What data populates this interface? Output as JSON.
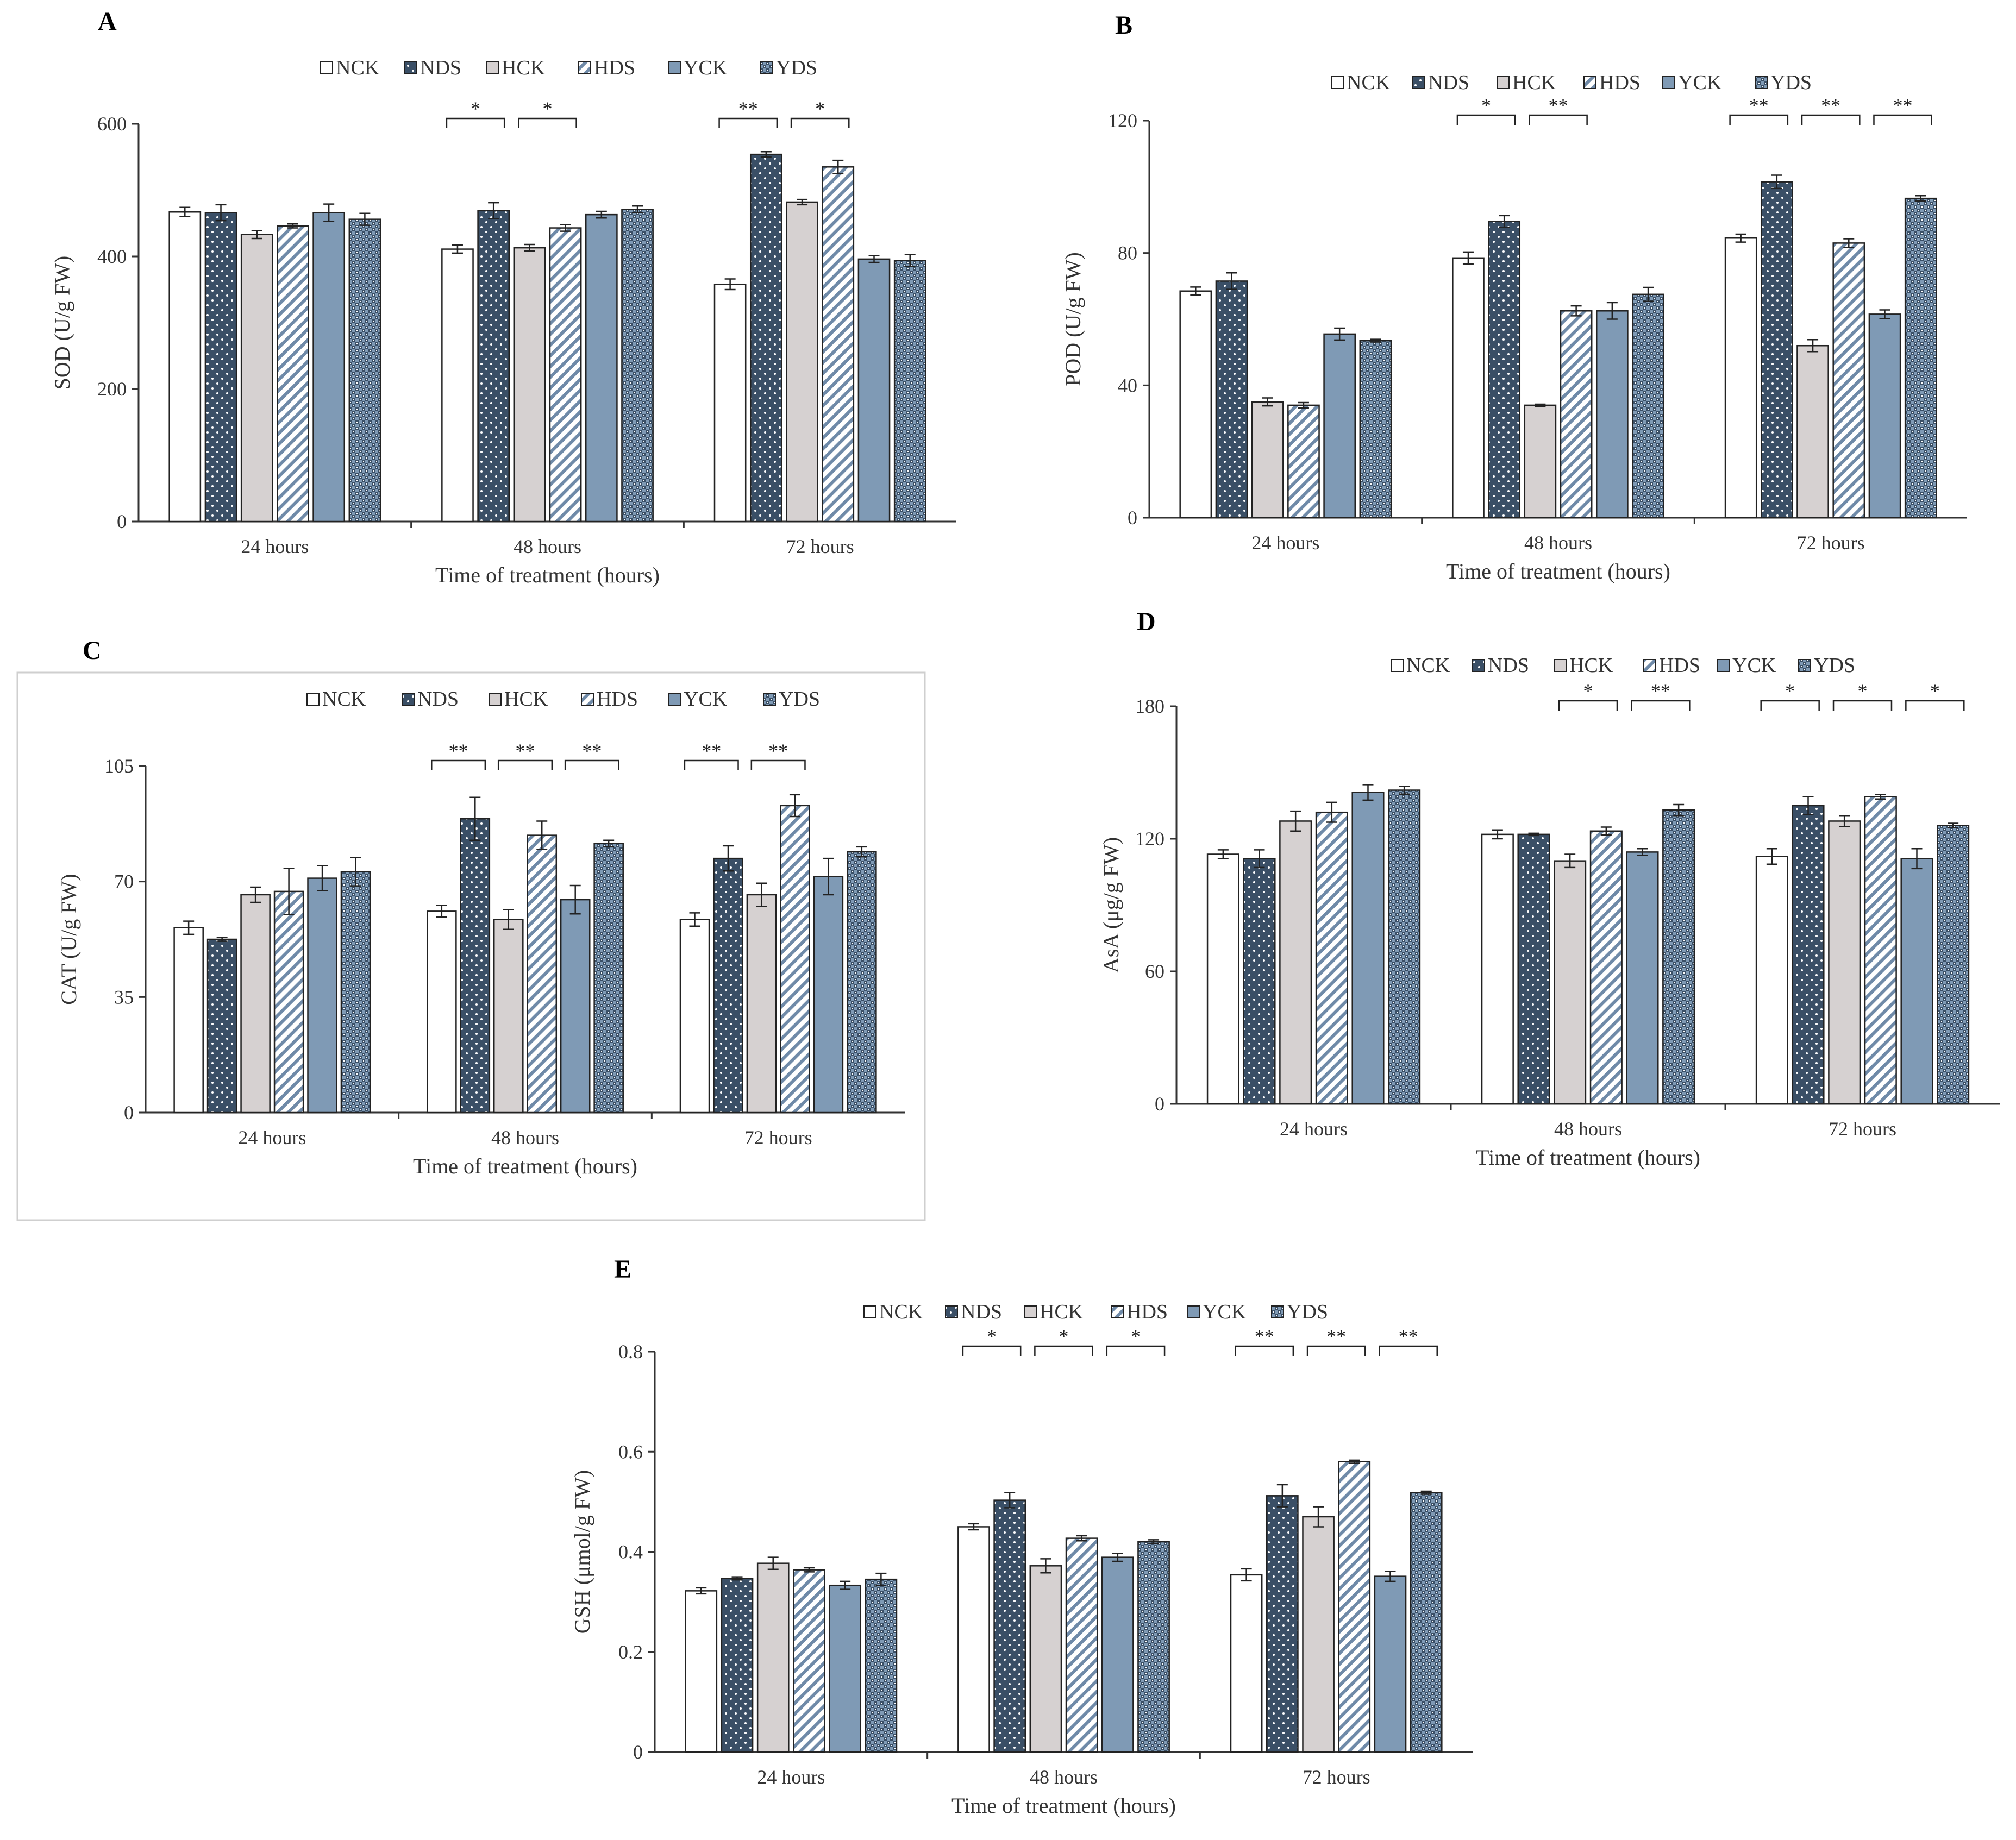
{
  "figure": {
    "series_names": [
      "NCK",
      "NDS",
      "HCK",
      "HDS",
      "YCK",
      "YDS"
    ],
    "series_colors": [
      "#ffffff",
      "#3a4f66",
      "#d6d1d1",
      "#ffffff",
      "#7f9ab5",
      "#ffffff"
    ],
    "series_patterns": [
      "solid",
      "dots",
      "solid",
      "diag",
      "solid",
      "check"
    ]
  },
  "chart_data": [
    {
      "panel": "A",
      "type": "bar",
      "categories": [
        "24 hours",
        "48 hours",
        "72 hours"
      ],
      "xlabel": "Time of treatment (hours)",
      "ylabel": "SOD (U/g FW)",
      "ylim": [
        0,
        600
      ],
      "yticks": [
        "0",
        "200",
        "400",
        "600"
      ],
      "series": [
        {
          "name": "NCK",
          "values": [
            467,
            411,
            358
          ],
          "errors": [
            7,
            6,
            8
          ]
        },
        {
          "name": "NDS",
          "values": [
            466,
            469,
            554
          ],
          "errors": [
            12,
            12,
            4
          ]
        },
        {
          "name": "HCK",
          "values": [
            433,
            413,
            482
          ],
          "errors": [
            6,
            5,
            4
          ]
        },
        {
          "name": "HDS",
          "values": [
            446,
            443,
            535
          ],
          "errors": [
            3,
            5,
            10
          ]
        },
        {
          "name": "YCK",
          "values": [
            466,
            463,
            396
          ],
          "errors": [
            13,
            5,
            5
          ]
        },
        {
          "name": "YDS",
          "values": [
            456,
            471,
            394
          ],
          "errors": [
            9,
            5,
            9
          ]
        }
      ],
      "sig": [
        {
          "group": 1,
          "from": 0,
          "to": 1,
          "label": "*"
        },
        {
          "group": 1,
          "from": 2,
          "to": 3,
          "label": "*"
        },
        {
          "group": 2,
          "from": 0,
          "to": 1,
          "label": "**"
        },
        {
          "group": 2,
          "from": 2,
          "to": 3,
          "label": "*"
        }
      ]
    },
    {
      "panel": "B",
      "type": "bar",
      "categories": [
        "24 hours",
        "48 hours",
        "72 hours"
      ],
      "xlabel": "Time of treatment (hours)",
      "ylabel": "POD (U/g FW)",
      "ylim": [
        0,
        120
      ],
      "yticks": [
        "0",
        "40",
        "80",
        "120"
      ],
      "series": [
        {
          "name": "NCK",
          "values": [
            68.5,
            78.5,
            84.5
          ],
          "errors": [
            1.2,
            1.8,
            1.2
          ]
        },
        {
          "name": "NDS",
          "values": [
            71.5,
            89.5,
            101.5
          ],
          "errors": [
            2.5,
            1.8,
            2
          ]
        },
        {
          "name": "HCK",
          "values": [
            35,
            34,
            52
          ],
          "errors": [
            1.2,
            0.3,
            1.8
          ]
        },
        {
          "name": "HDS",
          "values": [
            34,
            62.5,
            83
          ],
          "errors": [
            0.8,
            1.5,
            1.3
          ]
        },
        {
          "name": "YCK",
          "values": [
            55.5,
            62.5,
            61.5
          ],
          "errors": [
            1.8,
            2.5,
            1.3
          ]
        },
        {
          "name": "YDS",
          "values": [
            53.5,
            67.5,
            96.5
          ],
          "errors": [
            0.4,
            2.1,
            0.8
          ]
        }
      ],
      "sig": [
        {
          "group": 1,
          "from": 0,
          "to": 1,
          "label": "*"
        },
        {
          "group": 1,
          "from": 2,
          "to": 3,
          "label": "**"
        },
        {
          "group": 2,
          "from": 0,
          "to": 1,
          "label": "**"
        },
        {
          "group": 2,
          "from": 2,
          "to": 3,
          "label": "**"
        },
        {
          "group": 2,
          "from": 4,
          "to": 5,
          "label": "**"
        }
      ]
    },
    {
      "panel": "C",
      "type": "bar",
      "categories": [
        "24 hours",
        "48 hours",
        "72 hours"
      ],
      "xlabel": "Time of treatment (hours)",
      "ylabel": "CAT (U/g FW)",
      "ylim": [
        0,
        105
      ],
      "yticks": [
        "0",
        "35",
        "70",
        "105"
      ],
      "series": [
        {
          "name": "NCK",
          "values": [
            56,
            61,
            58.5
          ],
          "errors": [
            2,
            1.8,
            2
          ]
        },
        {
          "name": "NDS",
          "values": [
            52.5,
            89,
            77
          ],
          "errors": [
            0.6,
            6.5,
            3.8
          ]
        },
        {
          "name": "HCK",
          "values": [
            66,
            58.5,
            66
          ],
          "errors": [
            2.3,
            3,
            3.5
          ]
        },
        {
          "name": "HDS",
          "values": [
            67,
            84,
            93
          ],
          "errors": [
            7,
            4.3,
            3.3
          ]
        },
        {
          "name": "YCK",
          "values": [
            71,
            64.5,
            71.5
          ],
          "errors": [
            3.8,
            4.3,
            5.5
          ]
        },
        {
          "name": "YDS",
          "values": [
            73,
            81.5,
            79
          ],
          "errors": [
            4.3,
            1,
            1.5
          ]
        }
      ],
      "sig": [
        {
          "group": 1,
          "from": 0,
          "to": 1,
          "label": "**"
        },
        {
          "group": 1,
          "from": 2,
          "to": 3,
          "label": "**"
        },
        {
          "group": 1,
          "from": 4,
          "to": 5,
          "label": "**"
        },
        {
          "group": 2,
          "from": 0,
          "to": 1,
          "label": "**"
        },
        {
          "group": 2,
          "from": 2,
          "to": 3,
          "label": "**"
        }
      ]
    },
    {
      "panel": "D",
      "type": "bar",
      "categories": [
        "24 hours",
        "48 hours",
        "72 hours"
      ],
      "xlabel": "Time of treatment (hours)",
      "ylabel": "AsA (μg/g FW)",
      "ylim": [
        0,
        180
      ],
      "yticks": [
        "0",
        "60",
        "120",
        "180"
      ],
      "series": [
        {
          "name": "NCK",
          "values": [
            113,
            122,
            112
          ],
          "errors": [
            2,
            2,
            3.5
          ]
        },
        {
          "name": "NDS",
          "values": [
            111,
            122,
            135
          ],
          "errors": [
            4,
            0.5,
            4
          ]
        },
        {
          "name": "HCK",
          "values": [
            128,
            110,
            128
          ],
          "errors": [
            4.5,
            3,
            2.5
          ]
        },
        {
          "name": "HDS",
          "values": [
            132,
            123.5,
            139
          ],
          "errors": [
            4.5,
            1.8,
            1
          ]
        },
        {
          "name": "YCK",
          "values": [
            141,
            114,
            111
          ],
          "errors": [
            3.5,
            1.5,
            4.5
          ]
        },
        {
          "name": "YDS",
          "values": [
            142,
            133,
            126
          ],
          "errors": [
            1.8,
            2.5,
            1
          ]
        }
      ],
      "sig": [
        {
          "group": 1,
          "from": 2,
          "to": 3,
          "label": "*"
        },
        {
          "group": 1,
          "from": 4,
          "to": 5,
          "label": "**"
        },
        {
          "group": 2,
          "from": 0,
          "to": 1,
          "label": "*"
        },
        {
          "group": 2,
          "from": 2,
          "to": 3,
          "label": "*"
        },
        {
          "group": 2,
          "from": 4,
          "to": 5,
          "label": "*"
        }
      ]
    },
    {
      "panel": "E",
      "type": "bar",
      "categories": [
        "24 hours",
        "48 hours",
        "72 hours"
      ],
      "xlabel": "Time of treatment (hours)",
      "ylabel": "GSH (μmol/g FW)",
      "ylim": [
        0,
        0.8
      ],
      "yticks": [
        "0",
        "0.2",
        "0.4",
        "0.6",
        "0.8"
      ],
      "series": [
        {
          "name": "NCK",
          "values": [
            0.322,
            0.45,
            0.354
          ],
          "errors": [
            0.006,
            0.006,
            0.012
          ]
        },
        {
          "name": "NDS",
          "values": [
            0.347,
            0.503,
            0.512
          ],
          "errors": [
            0.003,
            0.015,
            0.022
          ]
        },
        {
          "name": "HCK",
          "values": [
            0.377,
            0.372,
            0.47
          ],
          "errors": [
            0.012,
            0.014,
            0.02
          ]
        },
        {
          "name": "HDS",
          "values": [
            0.364,
            0.427,
            0.58
          ],
          "errors": [
            0.004,
            0.005,
            0.003
          ]
        },
        {
          "name": "YCK",
          "values": [
            0.333,
            0.389,
            0.351
          ],
          "errors": [
            0.008,
            0.008,
            0.01
          ]
        },
        {
          "name": "YDS",
          "values": [
            0.345,
            0.42,
            0.518
          ],
          "errors": [
            0.012,
            0.004,
            0.003
          ]
        }
      ],
      "sig": [
        {
          "group": 1,
          "from": 0,
          "to": 1,
          "label": "*"
        },
        {
          "group": 1,
          "from": 2,
          "to": 3,
          "label": "*"
        },
        {
          "group": 1,
          "from": 4,
          "to": 5,
          "label": "*"
        },
        {
          "group": 2,
          "from": 0,
          "to": 1,
          "label": "**"
        },
        {
          "group": 2,
          "from": 2,
          "to": 3,
          "label": "**"
        },
        {
          "group": 2,
          "from": 4,
          "to": 5,
          "label": "**"
        }
      ]
    }
  ]
}
